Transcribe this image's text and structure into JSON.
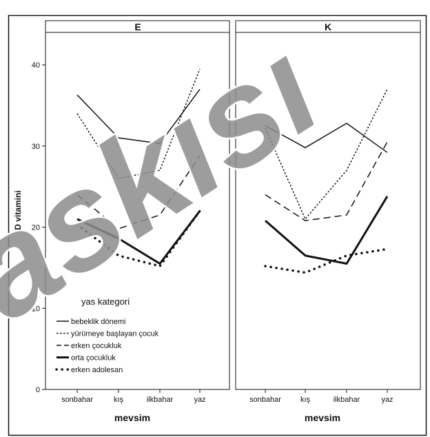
{
  "watermark": "askısı",
  "chart_data": {
    "type": "line",
    "panels": [
      "E",
      "K"
    ],
    "x_categories": [
      "sonbahar",
      "kış",
      "ilkbahar",
      "yaz"
    ],
    "xlabel": "mevsim",
    "ylabel": "D vitamini",
    "ylim": [
      0,
      44
    ],
    "yticks": [
      0,
      10,
      20,
      30,
      40
    ],
    "legend": {
      "title": "yas kategori",
      "placement": "bottom-left of panel E"
    },
    "series": [
      {
        "name": "bebeklik dönemi",
        "style": "solid-thin",
        "E": [
          36.3,
          31.0,
          30.3,
          37.0
        ],
        "K": [
          32.5,
          29.8,
          32.8,
          29.2
        ]
      },
      {
        "name": "yürümeye başlayan çocuk",
        "style": "dotted-thin",
        "E": [
          34.0,
          26.0,
          27.0,
          39.5
        ],
        "K": [
          32.2,
          21.0,
          27.0,
          37.0
        ]
      },
      {
        "name": "erken çocukluk",
        "style": "dashed",
        "E": [
          24.0,
          19.8,
          21.5,
          28.8
        ],
        "K": [
          24.0,
          20.8,
          21.5,
          30.5
        ]
      },
      {
        "name": "orta çocukluk",
        "style": "solid-thick",
        "E": [
          21.0,
          18.6,
          15.5,
          22.0
        ],
        "K": [
          20.8,
          16.5,
          15.5,
          23.8
        ]
      },
      {
        "name": "erken adolesan",
        "style": "dotted-thick",
        "E": [
          20.3,
          16.5,
          15.2,
          22.0
        ],
        "K": [
          15.2,
          14.4,
          16.5,
          17.3
        ]
      }
    ]
  }
}
